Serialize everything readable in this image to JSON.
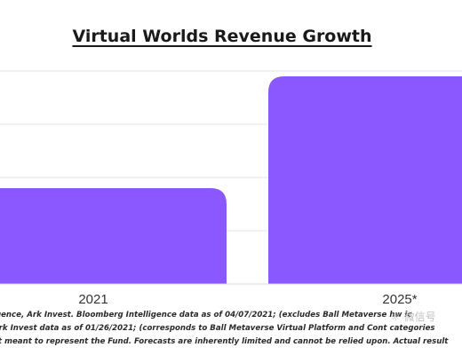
{
  "chart_data": {
    "type": "bar",
    "title": "Virtual Worlds Revenue Growth",
    "xlabel": "",
    "ylabel": "",
    "categories": [
      "2021",
      "2025*"
    ],
    "values": [
      180,
      390
    ],
    "ylim": [
      0,
      400
    ],
    "grid": true,
    "bar_color": "#8b57fe",
    "grid_color": "#e6e6e6"
  },
  "footnotes": [
    "igence, Ark Invest. Bloomberg Intelligence data as of 04/07/2021; (excludes Ball Metaverse  hw  ic",
    "Ark Invest data as of  01/26/2021; (corresponds to Ball Metaverse Virtual Platform and Cont   categories",
    "ot meant to represent the Fund. Forecasts are inherently limited and cannot be relied upon. Actual result"
  ],
  "watermark": "微信号"
}
